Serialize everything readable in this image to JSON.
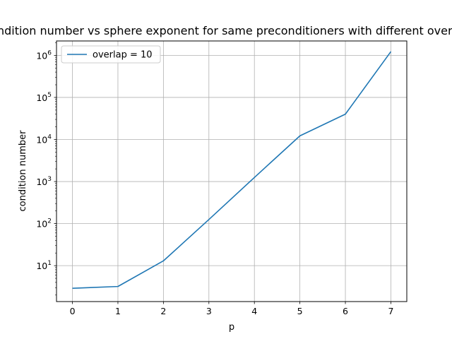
{
  "chart_data": {
    "type": "line",
    "title": "Condition number vs sphere exponent for same preconditioners with different overlap",
    "xlabel": "p",
    "ylabel": "condition number",
    "yscale": "log",
    "xlim": [
      -0.35,
      7.35
    ],
    "ylim": [
      1.4,
      2200000
    ],
    "x_ticks": [
      0,
      1,
      2,
      3,
      4,
      5,
      6,
      7
    ],
    "y_ticks": [
      {
        "value": 10,
        "base": "10",
        "exp": "1"
      },
      {
        "value": 100,
        "base": "10",
        "exp": "2"
      },
      {
        "value": 1000,
        "base": "10",
        "exp": "3"
      },
      {
        "value": 10000,
        "base": "10",
        "exp": "4"
      },
      {
        "value": 100000,
        "base": "10",
        "exp": "5"
      },
      {
        "value": 1000000,
        "base": "10",
        "exp": "6"
      }
    ],
    "grid": true,
    "legend_position": "top-left",
    "series": [
      {
        "name": "overlap = 10",
        "color": "#1f77b4",
        "x": [
          0,
          1,
          2,
          3,
          4,
          5,
          6,
          7
        ],
        "y": [
          2.9,
          3.2,
          13,
          125,
          1250,
          12200,
          40000,
          1230000
        ]
      }
    ]
  }
}
